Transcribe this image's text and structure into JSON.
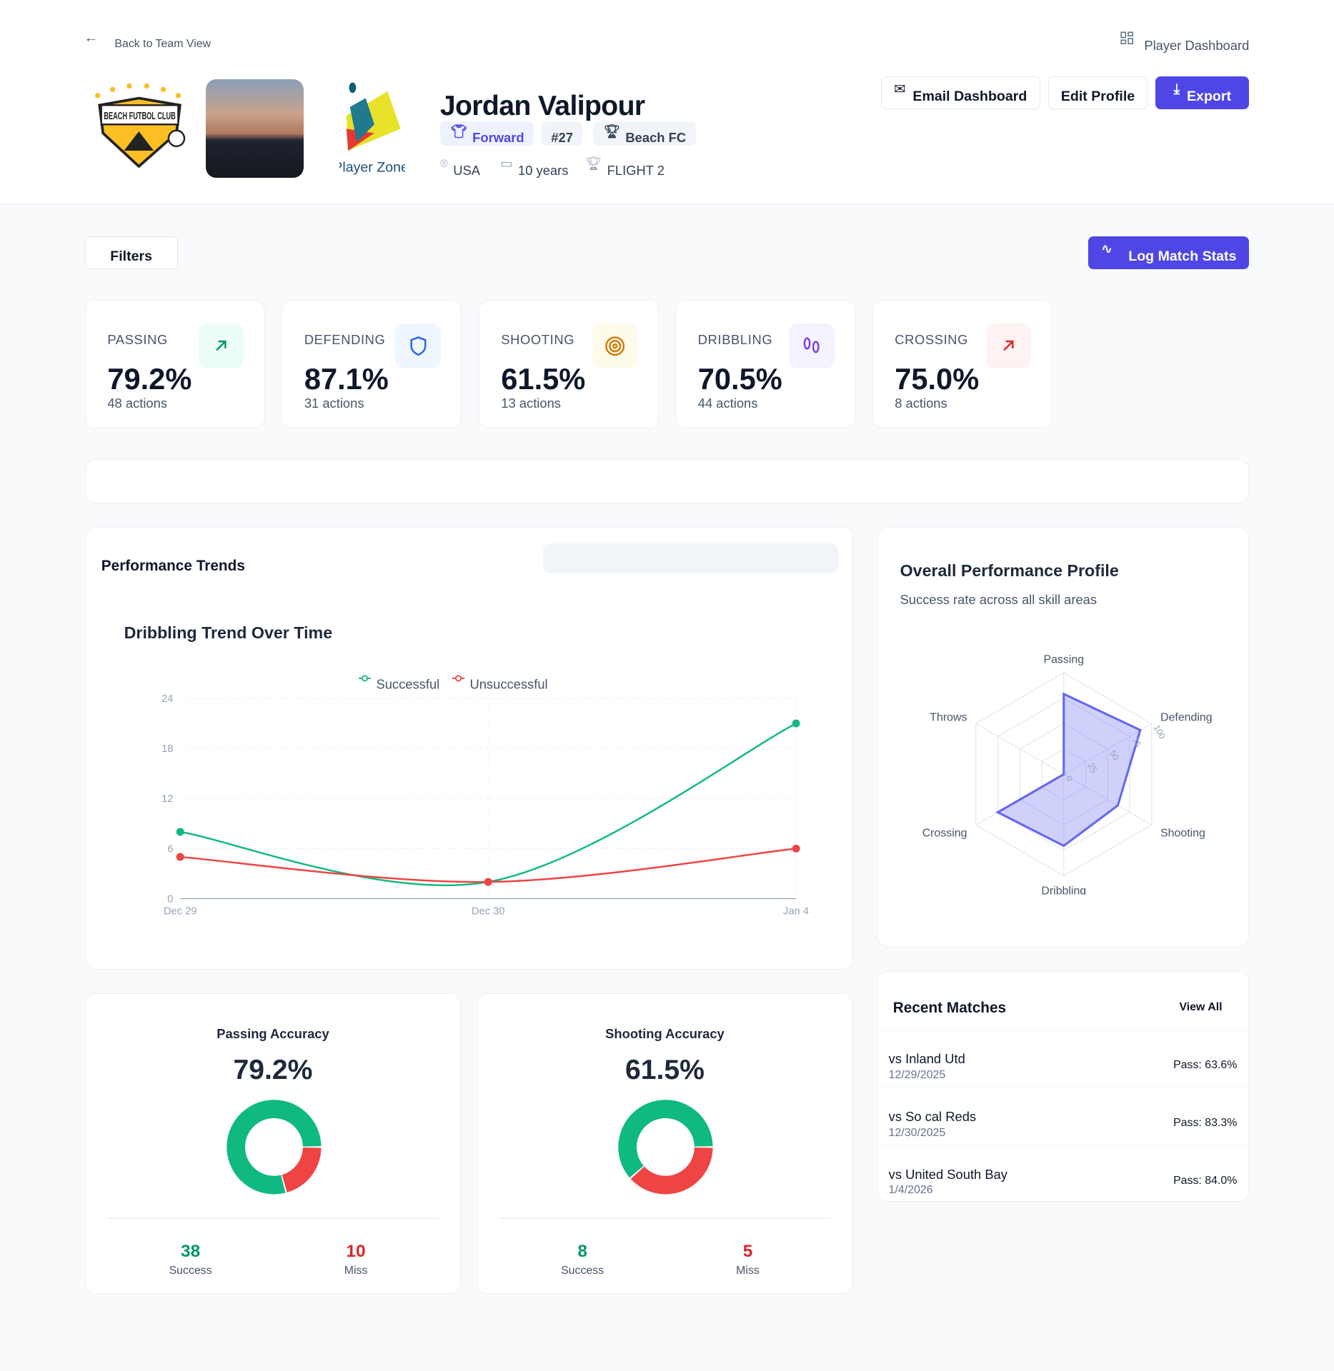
{
  "header": {
    "back_label": "Back to Team View",
    "view_title": "Player Dashboard",
    "club_logo_text": "BEACH FUTBOL CLUB",
    "partner_logo_text": "Player Zone",
    "player": {
      "name": "Jordan Valipour",
      "position": "Forward",
      "number": "#27",
      "team": "Beach FC",
      "country": "USA",
      "age": "10 years",
      "flight": "FLIGHT 2"
    },
    "buttons": {
      "email": "Email Dashboard",
      "edit": "Edit Profile",
      "export": "Export"
    }
  },
  "toolbar": {
    "filters": "Filters",
    "log": "Log Match Stats"
  },
  "stats": [
    {
      "label": "PASSING",
      "value": "79.2%",
      "actions": "48 actions",
      "icon": "arrow-up-right-icon",
      "color": "#059669",
      "bg": "#ecfdf5"
    },
    {
      "label": "DEFENDING",
      "value": "87.1%",
      "actions": "31 actions",
      "icon": "shield-icon",
      "color": "#2563eb",
      "bg": "#eff6ff"
    },
    {
      "label": "SHOOTING",
      "value": "61.5%",
      "actions": "13 actions",
      "icon": "target-icon",
      "color": "#d97706",
      "bg": "#fffbeb"
    },
    {
      "label": "DRIBBLING",
      "value": "70.5%",
      "actions": "44 actions",
      "icon": "footprints-icon",
      "color": "#7c3aed",
      "bg": "#f5f3ff"
    },
    {
      "label": "CROSSING",
      "value": "75.0%",
      "actions": "8 actions",
      "icon": "arrow-up-right-icon",
      "color": "#dc2626",
      "bg": "#fef2f2"
    }
  ],
  "trends": {
    "title": "Performance Trends"
  },
  "chart_data": [
    {
      "type": "line",
      "title": "Dribbling Trend Over Time",
      "categories": [
        "Dec 29",
        "Dec 30",
        "Jan 4"
      ],
      "ylim": [
        0,
        24
      ],
      "yticks": [
        0,
        6,
        12,
        18,
        24
      ],
      "grid": true,
      "legend": "top",
      "series": [
        {
          "name": "Successful",
          "values": [
            8,
            2,
            21
          ],
          "color": "#10b981"
        },
        {
          "name": "Unsuccessful",
          "values": [
            5,
            2,
            6
          ],
          "color": "#ef4444"
        }
      ]
    },
    {
      "type": "radar",
      "title": "Overall Performance Profile",
      "subtitle": "Success rate across all skill areas",
      "axes": [
        "Passing",
        "Defending",
        "Shooting",
        "Dribbling",
        "Crossing",
        "Throws"
      ],
      "values": [
        79.2,
        87.1,
        61.5,
        70.5,
        75.0,
        0
      ],
      "rlim": [
        0,
        100
      ],
      "rticks": [
        0,
        25,
        50,
        75,
        100
      ],
      "color": "#6366f1"
    },
    {
      "type": "pie",
      "title": "Passing Accuracy",
      "center_label": "79.2%",
      "categories": [
        "Success",
        "Miss"
      ],
      "values": [
        38,
        10
      ],
      "colors": [
        "#10b981",
        "#ef4444"
      ]
    },
    {
      "type": "pie",
      "title": "Shooting Accuracy",
      "center_label": "61.5%",
      "categories": [
        "Success",
        "Miss"
      ],
      "values": [
        8,
        5
      ],
      "colors": [
        "#10b981",
        "#ef4444"
      ]
    }
  ],
  "matches": {
    "title": "Recent Matches",
    "view_all": "View All",
    "items": [
      {
        "opponent": "vs Inland Utd",
        "date": "12/29/2025",
        "pass": "Pass: 63.6%"
      },
      {
        "opponent": "vs So cal Reds",
        "date": "12/30/2025",
        "pass": "Pass: 83.3%"
      },
      {
        "opponent": "vs United South Bay",
        "date": "1/4/2026",
        "pass": "Pass: 84.0%"
      }
    ]
  }
}
